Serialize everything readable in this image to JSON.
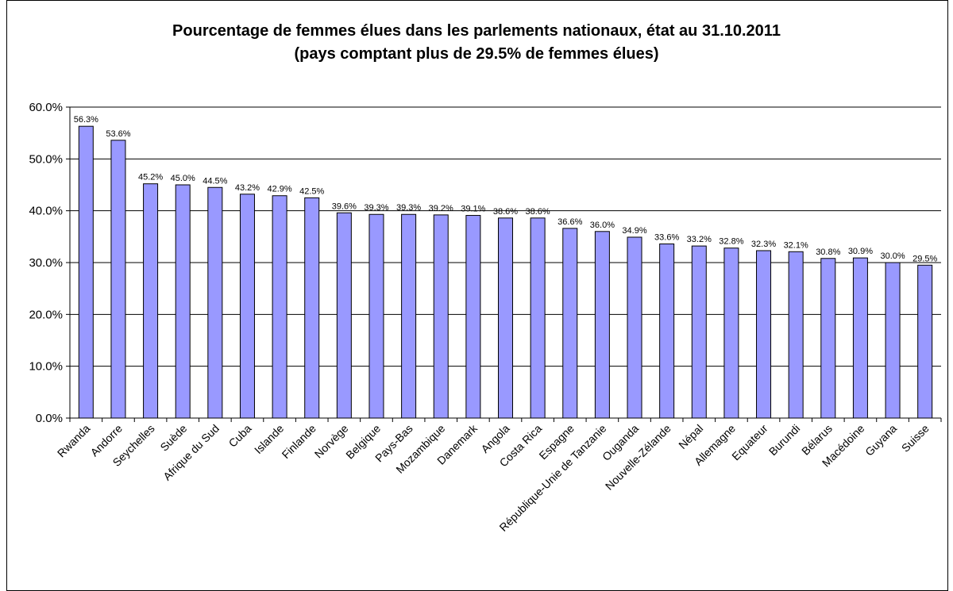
{
  "chart_data": {
    "type": "bar",
    "title": "Pourcentage de femmes élues dans les parlements nationaux, état au 31.10.2011",
    "subtitle": "(pays comptant plus de 29.5% de femmes élues)",
    "categories": [
      "Rwanda",
      "Andorre",
      "Seychelles",
      "Suède",
      "Afrique du Sud",
      "Cuba",
      "Islande",
      "Finlande",
      "Norvège",
      "Belgique",
      "Pays-Bas",
      "Mozambique",
      "Danemark",
      "Angola",
      "Costa Rica",
      "Espagne",
      "République-Unie de Tanzanie",
      "Ouganda",
      "Nouvelle-Zélande",
      "Népal",
      "Allemagne",
      "Equateur",
      "Burundi",
      "Bélarus",
      "Macédoine",
      "Guyana",
      "Suisse"
    ],
    "values": [
      56.3,
      53.6,
      45.2,
      45.0,
      44.5,
      43.2,
      42.9,
      42.5,
      39.6,
      39.3,
      39.3,
      39.2,
      39.1,
      38.6,
      38.6,
      36.6,
      36.0,
      34.9,
      33.6,
      33.2,
      32.8,
      32.3,
      32.1,
      30.8,
      30.9,
      30.0,
      29.5
    ],
    "value_labels": [
      "56.3%",
      "53.6%",
      "45.2%",
      "45.0%",
      "44.5%",
      "43.2%",
      "42.9%",
      "42.5%",
      "39.6%",
      "39.3%",
      "39.3%",
      "39.2%",
      "39.1%",
      "38.6%",
      "38.6%",
      "36.6%",
      "36.0%",
      "34.9%",
      "33.6%",
      "33.2%",
      "32.8%",
      "32.3%",
      "32.1%",
      "30.8%",
      "30.9%",
      "30.0%",
      "29.5%"
    ],
    "yticks": [
      0,
      10,
      20,
      30,
      40,
      50,
      60
    ],
    "ytick_labels": [
      "0.0%",
      "10.0%",
      "20.0%",
      "30.0%",
      "40.0%",
      "50.0%",
      "60.0%"
    ],
    "ylim": [
      0,
      60
    ],
    "grid": true,
    "legend": false,
    "bar_color": "#9999ff",
    "bar_stroke": "#000000"
  }
}
